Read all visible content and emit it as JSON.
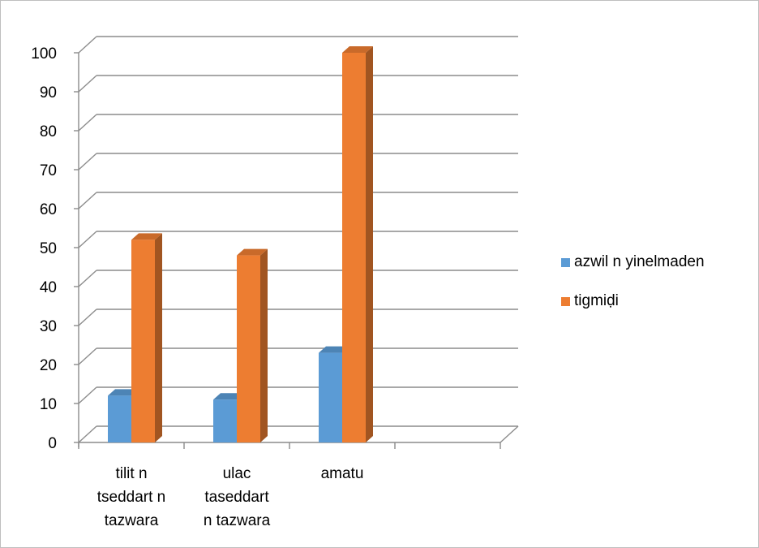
{
  "chart_data": {
    "type": "bar",
    "style": "3d-clustered-column",
    "categories": [
      [
        "tilit n",
        "tseddart n",
        "tazwara"
      ],
      [
        "ulac",
        "taseddart",
        "n tazwara"
      ],
      [
        "amatu"
      ],
      []
    ],
    "series": [
      {
        "name": "azwil n yinelmaden",
        "color": "#5B9BD5",
        "values": [
          12,
          11,
          23,
          null
        ]
      },
      {
        "name": "tigmiḍi",
        "color": "#ED7D31",
        "values": [
          52,
          48,
          100,
          null
        ]
      }
    ],
    "y_ticks": [
      "0",
      "10",
      "20",
      "30",
      "40",
      "50",
      "60",
      "70",
      "80",
      "90",
      "100"
    ],
    "ylim": [
      0,
      100
    ],
    "grid": true,
    "legend_position": "right"
  }
}
